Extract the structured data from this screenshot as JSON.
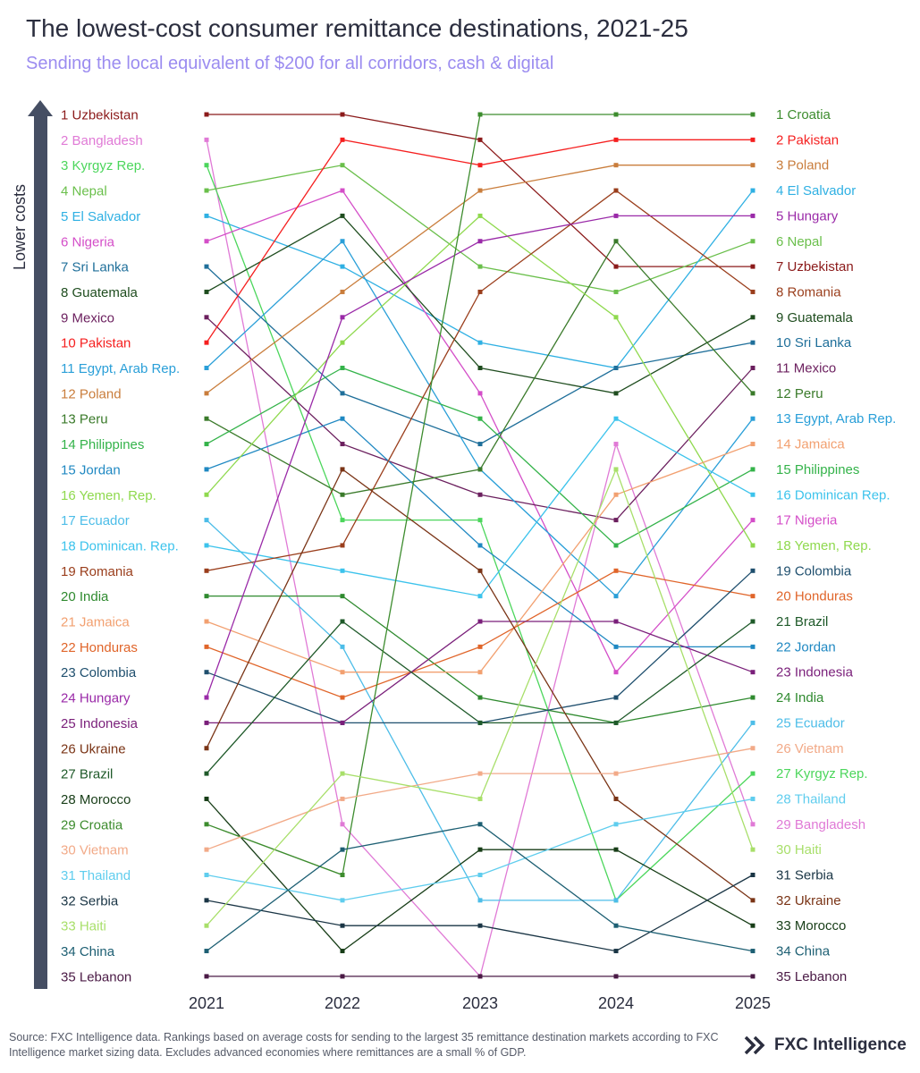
{
  "title": "The lowest-cost consumer remittance destinations, 2021-25",
  "subtitle": "Sending the local equivalent of $200 for all corridors, cash & digital",
  "footer": {
    "source": "Source: FXC Intelligence data. Rankings based on average costs for sending to the largest 35 remittance destination markets according to FXC Intelligence market sizing data. Excludes advanced economies where remittances are a small % of GDP.",
    "brand": "FXC Intelligence",
    "brand_logo_icon": "fxc-chevrons-logo-icon"
  },
  "chart_data": {
    "type": "line",
    "chart_style": "bump",
    "x": [
      "2021",
      "2022",
      "2023",
      "2024",
      "2025"
    ],
    "ylabel": "Lower costs",
    "ylim": [
      1,
      35
    ],
    "y_reversed": true,
    "grid": false,
    "legend": "direct labels at both ends",
    "arrow_color": "#454e63",
    "left_labels": [
      "1 Uzbekistan",
      "2 Bangladesh",
      "3 Kyrgyz Rep.",
      "4 Nepal",
      "5 El Salvador",
      "6 Nigeria",
      "7 Sri Lanka",
      "8 Guatemala",
      "9 Mexico",
      "10 Pakistan",
      "11 Egypt, Arab Rep.",
      "12 Poland",
      "13 Peru",
      "14 Philippines",
      "15 Jordan",
      "16 Yemen, Rep.",
      "17 Ecuador",
      "18 Dominican. Rep.",
      "19 Romania",
      "20 India",
      "21 Jamaica",
      "22 Honduras",
      "23 Colombia",
      "24 Hungary",
      "25 Indonesia",
      "26 Ukraine",
      "27 Brazil",
      "28 Morocco",
      "29 Croatia",
      "30 Vietnam",
      "31 Thailand",
      "32 Serbia",
      "33 Haiti",
      "34 China",
      "35 Lebanon"
    ],
    "right_labels": [
      "1 Croatia",
      "2 Pakistan",
      "3 Poland",
      "4 El Salvador",
      "5 Hungary",
      "6 Nepal",
      "7 Uzbekistan",
      "8 Romania",
      "9 Guatemala",
      "10 Sri Lanka",
      "11 Mexico",
      "12 Peru",
      "13 Egypt, Arab Rep.",
      "14 Jamaica",
      "15 Philippines",
      "16 Dominican Rep.",
      "17 Nigeria",
      "18 Yemen, Rep.",
      "19 Colombia",
      "20 Honduras",
      "21 Brazil",
      "22 Jordan",
      "23 Indonesia",
      "24 India",
      "25 Ecuador",
      "26 Vietnam",
      "27 Kyrgyz Rep.",
      "28 Thailand",
      "29 Bangladesh",
      "30 Haiti",
      "31 Serbia",
      "32 Ukraine",
      "33 Morocco",
      "34 China",
      "35 Lebanon"
    ],
    "series": [
      {
        "name": "Uzbekistan",
        "color": "#8b1a1a",
        "values": [
          1,
          1,
          2,
          7,
          7
        ]
      },
      {
        "name": "Bangladesh",
        "color": "#e07ad6",
        "values": [
          2,
          29,
          35,
          14,
          29
        ]
      },
      {
        "name": "Kyrgyz Rep.",
        "color": "#4cd65c",
        "values": [
          3,
          17,
          17,
          32,
          27
        ]
      },
      {
        "name": "Nepal",
        "color": "#6abf4b",
        "values": [
          4,
          3,
          7,
          8,
          6
        ]
      },
      {
        "name": "El Salvador",
        "color": "#2fb0e3",
        "values": [
          5,
          7,
          10,
          11,
          4
        ]
      },
      {
        "name": "Nigeria",
        "color": "#d44ec8",
        "values": [
          6,
          4,
          12,
          23,
          17
        ]
      },
      {
        "name": "Sri Lanka",
        "color": "#1f6f9a",
        "values": [
          7,
          12,
          14,
          11,
          10
        ]
      },
      {
        "name": "Guatemala",
        "color": "#1f4d1f",
        "values": [
          8,
          5,
          11,
          12,
          9
        ]
      },
      {
        "name": "Mexico",
        "color": "#6b1f5e",
        "values": [
          9,
          14,
          16,
          17,
          11
        ]
      },
      {
        "name": "Pakistan",
        "color": "#f51f1f",
        "values": [
          10,
          2,
          3,
          2,
          2
        ]
      },
      {
        "name": "Egypt, Arab Rep.",
        "color": "#2a9fd8",
        "values": [
          11,
          6,
          15,
          20,
          13
        ]
      },
      {
        "name": "Poland",
        "color": "#c97d3c",
        "values": [
          12,
          8,
          4,
          3,
          3
        ]
      },
      {
        "name": "Peru",
        "color": "#3a7a2a",
        "values": [
          13,
          16,
          15,
          6,
          12
        ]
      },
      {
        "name": "Philippines",
        "color": "#34b34a",
        "values": [
          14,
          11,
          13,
          18,
          15
        ]
      },
      {
        "name": "Jordan",
        "color": "#1f88c2",
        "values": [
          15,
          13,
          18,
          22,
          22
        ]
      },
      {
        "name": "Yemen, Rep.",
        "color": "#8fd94e",
        "values": [
          16,
          10,
          5,
          9,
          18
        ]
      },
      {
        "name": "Ecuador",
        "color": "#4dbde8",
        "values": [
          17,
          22,
          32,
          32,
          25
        ]
      },
      {
        "name": "Dominican Rep.",
        "color": "#3cc3ec",
        "values": [
          18,
          19,
          20,
          13,
          16
        ]
      },
      {
        "name": "Romania",
        "color": "#9a3e1c",
        "values": [
          19,
          18,
          8,
          4,
          8
        ]
      },
      {
        "name": "India",
        "color": "#2f8a2f",
        "values": [
          20,
          20,
          24,
          25,
          24
        ]
      },
      {
        "name": "Jamaica",
        "color": "#f2a070",
        "values": [
          21,
          23,
          23,
          16,
          14
        ]
      },
      {
        "name": "Honduras",
        "color": "#e0652a",
        "values": [
          22,
          24,
          22,
          19,
          20
        ]
      },
      {
        "name": "Colombia",
        "color": "#1f4f6e",
        "values": [
          23,
          25,
          25,
          24,
          19
        ]
      },
      {
        "name": "Hungary",
        "color": "#9a2aa8",
        "values": [
          24,
          9,
          6,
          5,
          5
        ]
      },
      {
        "name": "Indonesia",
        "color": "#7a1f7a",
        "values": [
          25,
          25,
          21,
          21,
          23
        ]
      },
      {
        "name": "Ukraine",
        "color": "#7a3416",
        "values": [
          26,
          15,
          19,
          28,
          32
        ]
      },
      {
        "name": "Brazil",
        "color": "#1f5a2a",
        "values": [
          27,
          21,
          25,
          25,
          21
        ]
      },
      {
        "name": "Morocco",
        "color": "#173d17",
        "values": [
          28,
          34,
          30,
          30,
          33
        ]
      },
      {
        "name": "Croatia",
        "color": "#3d8c2e",
        "values": [
          29,
          31,
          1,
          1,
          1
        ]
      },
      {
        "name": "Vietnam",
        "color": "#f2aa88",
        "values": [
          30,
          28,
          27,
          27,
          26
        ]
      },
      {
        "name": "Thailand",
        "color": "#5fcdee",
        "values": [
          31,
          32,
          31,
          29,
          28
        ]
      },
      {
        "name": "Serbia",
        "color": "#1a3545",
        "values": [
          32,
          33,
          33,
          34,
          31
        ]
      },
      {
        "name": "Haiti",
        "color": "#a8df6a",
        "values": [
          33,
          27,
          28,
          15,
          30
        ]
      },
      {
        "name": "China",
        "color": "#1d5f73",
        "values": [
          34,
          30,
          29,
          33,
          34
        ]
      },
      {
        "name": "Lebanon",
        "color": "#4a1a45",
        "values": [
          35,
          35,
          35,
          35,
          35
        ]
      }
    ]
  }
}
